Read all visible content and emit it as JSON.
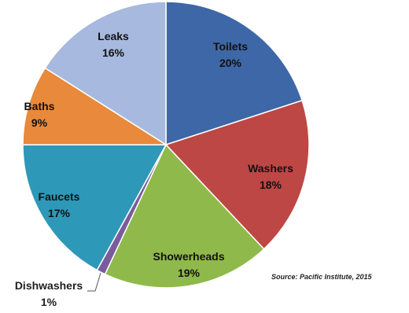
{
  "chart_data": {
    "type": "pie",
    "slices": [
      {
        "label": "Toilets",
        "value": 20,
        "pct": "20%",
        "color": "#3d67a6"
      },
      {
        "label": "Washers",
        "value": 18,
        "pct": "18%",
        "color": "#bd4744"
      },
      {
        "label": "Showerheads",
        "value": 19,
        "pct": "19%",
        "color": "#90b94b"
      },
      {
        "label": "Dishwashers",
        "value": 1,
        "pct": "1%",
        "color": "#7a5c9c"
      },
      {
        "label": "Faucets",
        "value": 17,
        "pct": "17%",
        "color": "#2e98b8"
      },
      {
        "label": "Baths",
        "value": 9,
        "pct": "9%",
        "color": "#e8893b"
      },
      {
        "label": "Leaks",
        "value": 16,
        "pct": "16%",
        "color": "#a7b9de"
      }
    ],
    "start_angle": "12 o'clock",
    "direction": "clockwise",
    "source": "Source: Pacific Institute, 2015"
  }
}
